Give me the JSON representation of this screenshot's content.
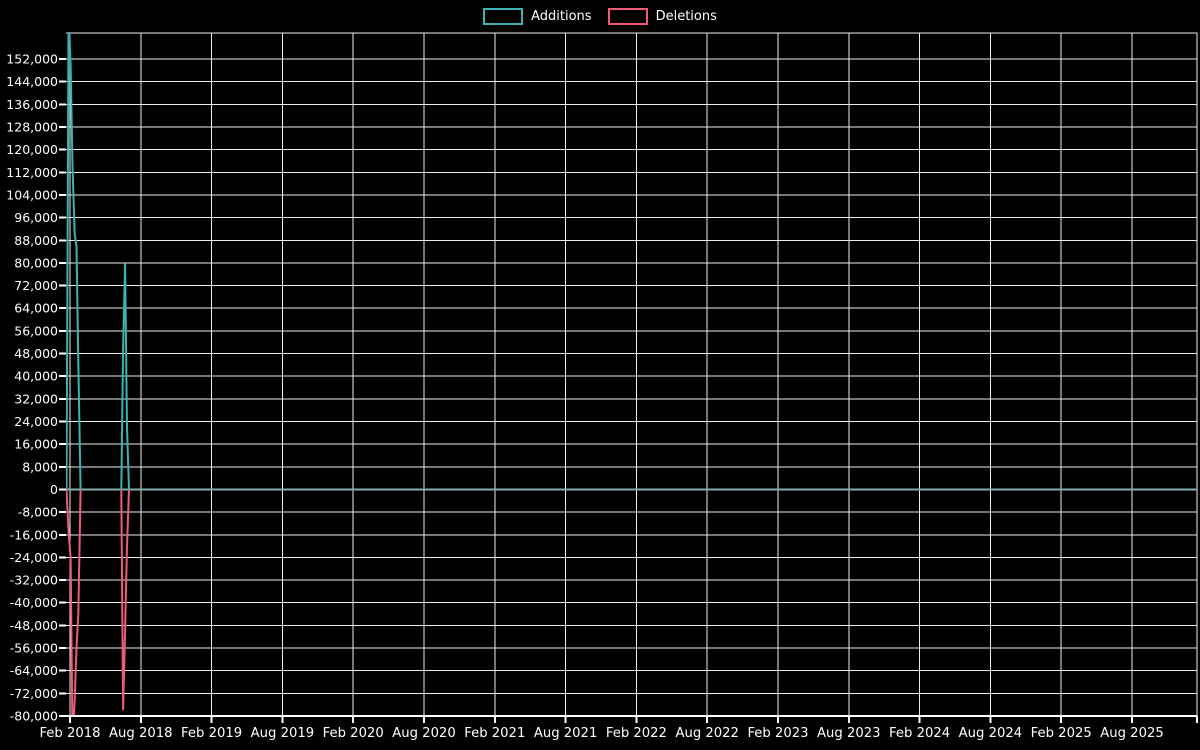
{
  "legend": {
    "items": [
      {
        "label": "Additions",
        "color": "#3ab3b5"
      },
      {
        "label": "Deletions",
        "color": "#f05c77"
      }
    ]
  },
  "chart_data": {
    "type": "line",
    "title": "",
    "background": "#000000",
    "grid": true,
    "legend_position": "top-center",
    "text_color": "#ffffff",
    "grid_color": "#ededed",
    "x_axis": {
      "tick_labels": [
        "Feb 2018",
        "Aug 2018",
        "Feb 2019",
        "Aug 2019",
        "Feb 2020",
        "Aug 2020",
        "Feb 2021",
        "Aug 2021",
        "Feb 2022",
        "Aug 2022",
        "Feb 2023",
        "Aug 2023",
        "Feb 2024",
        "Aug 2024",
        "Feb 2025",
        "Aug 2025"
      ],
      "tick_months": [
        0,
        6,
        12,
        18,
        24,
        30,
        36,
        42,
        48,
        54,
        60,
        66,
        72,
        78,
        84,
        90
      ],
      "range_months": [
        -0.35,
        95.5
      ]
    },
    "y_axis": {
      "tick_labels": [
        "152,000",
        "144,000",
        "136,000",
        "128,000",
        "120,000",
        "112,000",
        "104,000",
        "96,000",
        "88,000",
        "80,000",
        "72,000",
        "64,000",
        "56,000",
        "48,000",
        "40,000",
        "32,000",
        "24,000",
        "16,000",
        "8,000",
        "0",
        "-8,000",
        "-16,000",
        "-24,000",
        "-32,000",
        "-40,000",
        "-48,000",
        "-56,000",
        "-64,000",
        "-72,000",
        "-80,000"
      ],
      "tick_values": [
        152000,
        144000,
        136000,
        128000,
        120000,
        112000,
        104000,
        96000,
        88000,
        80000,
        72000,
        64000,
        56000,
        48000,
        40000,
        32000,
        24000,
        16000,
        8000,
        0,
        -8000,
        -16000,
        -24000,
        -32000,
        -40000,
        -48000,
        -56000,
        -64000,
        -72000,
        -80000
      ],
      "range": [
        -80000,
        161200
      ]
    },
    "baseline": {
      "value": 0,
      "color": "#87aeae"
    },
    "series": [
      {
        "name": "Additions",
        "color": "#3ab3b5",
        "points": [
          [
            -0.3,
            0
          ],
          [
            -0.12,
            168000
          ],
          [
            0.05,
            150000
          ],
          [
            0.22,
            113000
          ],
          [
            0.4,
            90000
          ],
          [
            0.55,
            86000
          ],
          [
            0.7,
            45000
          ],
          [
            0.9,
            0
          ],
          [
            4.35,
            0
          ],
          [
            4.5,
            50000
          ],
          [
            4.67,
            79500
          ],
          [
            4.83,
            22000
          ],
          [
            5.0,
            0
          ],
          [
            95.5,
            0
          ]
        ]
      },
      {
        "name": "Deletions",
        "color": "#f05c77",
        "points": [
          [
            -0.3,
            0
          ],
          [
            -0.12,
            -15000
          ],
          [
            0.05,
            -24000
          ],
          [
            0.22,
            -90000
          ],
          [
            0.4,
            -74000
          ],
          [
            0.55,
            -56000
          ],
          [
            0.7,
            -44000
          ],
          [
            0.9,
            0
          ],
          [
            4.35,
            0
          ],
          [
            4.5,
            -77700
          ],
          [
            4.67,
            -49600
          ],
          [
            4.83,
            -20000
          ],
          [
            5.0,
            0
          ],
          [
            95.5,
            0
          ]
        ]
      }
    ]
  }
}
